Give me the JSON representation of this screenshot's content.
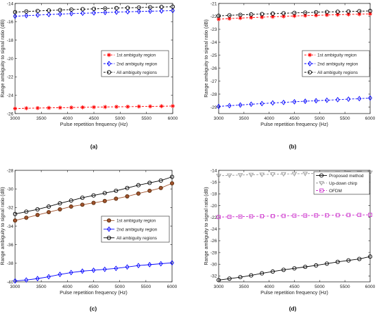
{
  "figure": {
    "panel_labels": [
      "(a)",
      "(b)",
      "(c)",
      "(d)"
    ]
  },
  "chart_data": [
    {
      "type": "line",
      "panel": "(a)",
      "xlabel": "Pulse repetition frequency (Hz)",
      "ylabel": "Range ambiguity to signal ratio (dB)",
      "xlim": [
        3000,
        6000
      ],
      "ylim": [
        -26,
        -14
      ],
      "xticks": [
        3000,
        3500,
        4000,
        4500,
        5000,
        5500,
        6000
      ],
      "yticks": [
        -26,
        -24,
        -22,
        -20,
        -18,
        -16,
        -14
      ],
      "grid": false,
      "legend_position": "center-right",
      "x": [
        3000,
        3214,
        3429,
        3643,
        3857,
        4071,
        4286,
        4500,
        4714,
        4929,
        5143,
        5357,
        5571,
        5786,
        6000
      ],
      "series": [
        {
          "name": "1st ambiguity region",
          "color": "#ff0000",
          "marker": "star",
          "dash": "dashed",
          "values": [
            -25.45,
            -25.42,
            -25.4,
            -25.38,
            -25.36,
            -25.34,
            -25.32,
            -25.3,
            -25.28,
            -25.26,
            -25.25,
            -25.23,
            -25.22,
            -25.2,
            -25.18
          ]
        },
        {
          "name": "2nd ambiguity region",
          "color": "#0000ff",
          "marker": "diamond",
          "dash": "dashed",
          "values": [
            -15.4,
            -15.33,
            -15.27,
            -15.21,
            -15.16,
            -15.11,
            -15.07,
            -15.03,
            -14.99,
            -14.95,
            -14.91,
            -14.88,
            -14.85,
            -14.82,
            -14.78
          ]
        },
        {
          "name": "All ambiguity regions",
          "color": "#000000",
          "marker": "circle",
          "dash": "dashed",
          "values": [
            -14.95,
            -14.88,
            -14.82,
            -14.77,
            -14.72,
            -14.67,
            -14.63,
            -14.59,
            -14.55,
            -14.51,
            -14.48,
            -14.45,
            -14.42,
            -14.39,
            -14.36
          ]
        }
      ]
    },
    {
      "type": "line",
      "panel": "(b)",
      "xlabel": "Pulse repetition frequency (Hz)",
      "ylabel": "Range ambiguity to signal ratio (dB)",
      "xlim": [
        3000,
        6000
      ],
      "ylim": [
        -29.5,
        -21
      ],
      "xticks": [
        3000,
        3500,
        4000,
        4500,
        5000,
        5500,
        6000
      ],
      "yticks": [
        -29,
        -28,
        -27,
        -26,
        -25,
        -24,
        -23,
        -22,
        -21
      ],
      "grid": false,
      "legend_position": "center-right",
      "x": [
        3000,
        3214,
        3429,
        3643,
        3857,
        4071,
        4286,
        4500,
        4714,
        4929,
        5143,
        5357,
        5571,
        5786,
        6000
      ],
      "series": [
        {
          "name": "1st ambiguity region",
          "color": "#ff0000",
          "marker": "star",
          "dash": "dashed",
          "values": [
            -22.22,
            -22.17,
            -22.13,
            -22.09,
            -22.06,
            -22.03,
            -22.0,
            -21.97,
            -21.94,
            -21.92,
            -21.89,
            -21.87,
            -21.85,
            -21.83,
            -21.8
          ]
        },
        {
          "name": "2nd ambiguity region",
          "color": "#0000ff",
          "marker": "diamond",
          "dash": "dashed",
          "values": [
            -28.95,
            -28.89,
            -28.84,
            -28.78,
            -28.73,
            -28.68,
            -28.64,
            -28.59,
            -28.55,
            -28.51,
            -28.47,
            -28.43,
            -28.39,
            -28.35,
            -28.3
          ]
        },
        {
          "name": "All ambiguity regions",
          "color": "#000000",
          "marker": "circle",
          "dash": "dashed",
          "values": [
            -21.96,
            -21.92,
            -21.88,
            -21.85,
            -21.82,
            -21.79,
            -21.76,
            -21.73,
            -21.71,
            -21.68,
            -21.66,
            -21.64,
            -21.62,
            -21.6,
            -21.58
          ]
        }
      ]
    },
    {
      "type": "line",
      "panel": "(c)",
      "xlabel": "Pulse repetition frequency (Hz)",
      "ylabel": "Range ambiguity to signal ratio (dB)",
      "xlim": [
        3000,
        6000
      ],
      "ylim": [
        -40,
        -28
      ],
      "xticks": [
        3000,
        3500,
        4000,
        4500,
        5000,
        5500,
        6000
      ],
      "yticks": [
        -40,
        -38,
        -36,
        -34,
        -32,
        -30,
        -28
      ],
      "grid": false,
      "legend_position": "center-right",
      "x": [
        3000,
        3214,
        3429,
        3643,
        3857,
        4071,
        4286,
        4500,
        4714,
        4929,
        5143,
        5357,
        5571,
        5786,
        6000
      ],
      "series": [
        {
          "name": "1st ambiguity region",
          "color": "#a0522d",
          "marker": "circle-filled",
          "dash": "solid",
          "values": [
            -33.4,
            -33.1,
            -32.8,
            -32.5,
            -32.2,
            -31.9,
            -31.7,
            -31.5,
            -31.3,
            -31.05,
            -30.8,
            -30.5,
            -30.2,
            -29.9,
            -29.4
          ]
        },
        {
          "name": "2nd ambiguity region",
          "color": "#0000ff",
          "marker": "diamond",
          "dash": "solid",
          "values": [
            -39.9,
            -39.8,
            -39.65,
            -39.45,
            -39.2,
            -39.0,
            -38.85,
            -38.75,
            -38.65,
            -38.55,
            -38.4,
            -38.25,
            -38.15,
            -38.05,
            -37.95
          ]
        },
        {
          "name": "All ambiguity regions",
          "color": "#000000",
          "marker": "circle",
          "dash": "solid",
          "values": [
            -32.7,
            -32.45,
            -32.2,
            -31.9,
            -31.55,
            -31.25,
            -30.95,
            -30.7,
            -30.45,
            -30.2,
            -29.9,
            -29.6,
            -29.35,
            -29.1,
            -28.7
          ]
        }
      ]
    },
    {
      "type": "line",
      "panel": "(d)",
      "xlabel": "Pulse repetition frequency (Hz)",
      "ylabel": "Range ambiguity to signal ratio (dB)",
      "xlim": [
        3000,
        6000
      ],
      "ylim": [
        -33,
        -14
      ],
      "xticks": [
        3000,
        3500,
        4000,
        4500,
        5000,
        5500,
        6000
      ],
      "yticks": [
        -32,
        -30,
        -28,
        -26,
        -24,
        -22,
        -20,
        -18,
        -16,
        -14
      ],
      "grid": false,
      "legend_position": "top-right",
      "x": [
        3000,
        3214,
        3429,
        3643,
        3857,
        4071,
        4286,
        4500,
        4714,
        4929,
        5143,
        5357,
        5571,
        5786,
        6000
      ],
      "series": [
        {
          "name": "Proposed method",
          "color": "#000000",
          "marker": "circle",
          "dash": "solid",
          "values": [
            -32.7,
            -32.45,
            -32.2,
            -31.9,
            -31.55,
            -31.25,
            -30.95,
            -30.7,
            -30.45,
            -30.2,
            -29.9,
            -29.6,
            -29.35,
            -29.1,
            -28.7
          ]
        },
        {
          "name": "Up-down chirp",
          "color": "#999999",
          "marker": "triangle-down",
          "dash": "dashed",
          "values": [
            -14.92,
            -14.86,
            -14.8,
            -14.75,
            -14.71,
            -14.67,
            -14.63,
            -14.59,
            -14.56,
            -14.53,
            -14.5,
            -14.47,
            -14.44,
            -14.41,
            -14.38
          ]
        },
        {
          "name": "OFDM",
          "color": "#cc33cc",
          "marker": "square",
          "dash": "dashed",
          "values": [
            -21.96,
            -21.92,
            -21.88,
            -21.85,
            -21.82,
            -21.79,
            -21.76,
            -21.73,
            -21.71,
            -21.68,
            -21.66,
            -21.64,
            -21.62,
            -21.6,
            -21.58
          ]
        }
      ]
    }
  ]
}
